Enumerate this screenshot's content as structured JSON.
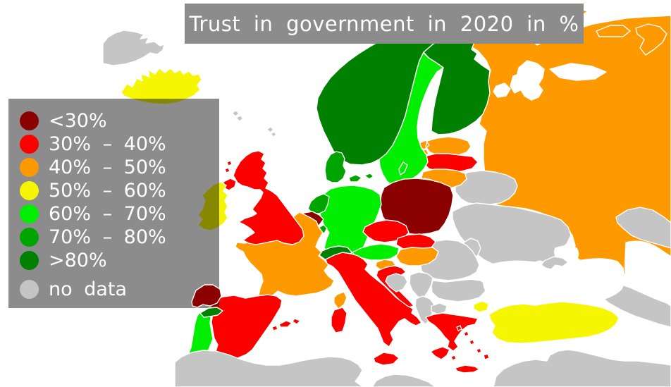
{
  "title": {
    "text": "Trust in government in 2020 in %"
  },
  "legend": {
    "items": [
      {
        "id": "lt30",
        "label": "<30%",
        "color": "#8b0000"
      },
      {
        "id": "30-40",
        "label": "30% – 40%",
        "color": "#fc0000"
      },
      {
        "id": "40-50",
        "label": "40% – 50%",
        "color": "#ff9900"
      },
      {
        "id": "50-60",
        "label": "50% – 60%",
        "color": "#f6f600"
      },
      {
        "id": "60-70",
        "label": "60% – 70%",
        "color": "#00ee00"
      },
      {
        "id": "70-80",
        "label": "70% – 80%",
        "color": "#00a400"
      },
      {
        "id": "gt80",
        "label": ">80%",
        "color": "#008000"
      }
    ],
    "no_data": {
      "id": "no-data",
      "label": "no data",
      "color": "#c5c5c5"
    }
  },
  "map": {
    "sea_color": "#ffffff",
    "border_color": "#ffffff",
    "title_bar_color": "#8c8c8c",
    "legend_overlay_color": "rgba(0,0,0,0.45)",
    "regions": [
      {
        "name": "russia",
        "category": "40-50"
      },
      {
        "name": "barents-sea",
        "category": "sea"
      },
      {
        "name": "kanin-strip",
        "category": "sea"
      },
      {
        "name": "white-sea",
        "category": "sea"
      },
      {
        "name": "kazakhstan",
        "category": "no-data"
      },
      {
        "name": "caspian-sea",
        "category": "sea"
      },
      {
        "name": "caucasus",
        "category": "no-data"
      },
      {
        "name": "belarus",
        "category": "no-data"
      },
      {
        "name": "ukraine",
        "category": "no-data"
      },
      {
        "name": "moldova",
        "category": "no-data"
      },
      {
        "name": "romania",
        "category": "no-data"
      },
      {
        "name": "bulgaria",
        "category": "no-data"
      },
      {
        "name": "black-sea",
        "category": "sea"
      },
      {
        "name": "crimea",
        "category": "no-data"
      },
      {
        "name": "estonia",
        "category": "40-50"
      },
      {
        "name": "latvia",
        "category": "30-40"
      },
      {
        "name": "lithuania",
        "category": "40-50"
      },
      {
        "name": "kaliningrad",
        "category": "40-50"
      },
      {
        "name": "finland",
        "category": "gt80"
      },
      {
        "name": "sweden",
        "category": "60-70"
      },
      {
        "name": "norway",
        "category": "gt80"
      },
      {
        "name": "gotland",
        "category": "60-70"
      },
      {
        "name": "denmark",
        "category": "70-80"
      },
      {
        "name": "poland",
        "category": "lt30"
      },
      {
        "name": "germany",
        "category": "60-70"
      },
      {
        "name": "netherlands",
        "category": "70-80"
      },
      {
        "name": "belgium",
        "category": "lt30"
      },
      {
        "name": "luxembourg",
        "category": "70-80"
      },
      {
        "name": "czechia",
        "category": "30-40"
      },
      {
        "name": "slovakia",
        "category": "30-40"
      },
      {
        "name": "austria",
        "category": "60-70"
      },
      {
        "name": "hungary",
        "category": "40-50"
      },
      {
        "name": "slovenia",
        "category": "40-50"
      },
      {
        "name": "croatia",
        "category": "30-40"
      },
      {
        "name": "bosnia",
        "category": "no-data"
      },
      {
        "name": "serbia",
        "category": "no-data"
      },
      {
        "name": "montenegro-albania",
        "category": "no-data"
      },
      {
        "name": "north-macedonia",
        "category": "no-data"
      },
      {
        "name": "switzerland",
        "category": "gt80"
      },
      {
        "name": "italy",
        "category": "30-40"
      },
      {
        "name": "france",
        "category": "40-50"
      },
      {
        "name": "corsica",
        "category": "40-50"
      },
      {
        "name": "spain",
        "category": "30-40"
      },
      {
        "name": "portugal",
        "category": "60-70"
      },
      {
        "name": "greece",
        "category": "30-40"
      },
      {
        "name": "turkey",
        "category": "50-60"
      },
      {
        "name": "cyprus",
        "category": "no-data"
      },
      {
        "name": "north-africa",
        "category": "no-data"
      },
      {
        "name": "middle-east",
        "category": "no-data"
      },
      {
        "name": "uk",
        "category": "30-40"
      },
      {
        "name": "ireland",
        "category": "50-60"
      },
      {
        "name": "iceland",
        "category": "50-60"
      },
      {
        "name": "greenland",
        "category": "no-data"
      },
      {
        "name": "atlantic-islands",
        "category": "no-data"
      },
      {
        "name": "galicia",
        "category": "lt30",
        "layer": "over"
      },
      {
        "name": "portugal-north",
        "category": "gt80",
        "layer": "over"
      }
    ]
  }
}
